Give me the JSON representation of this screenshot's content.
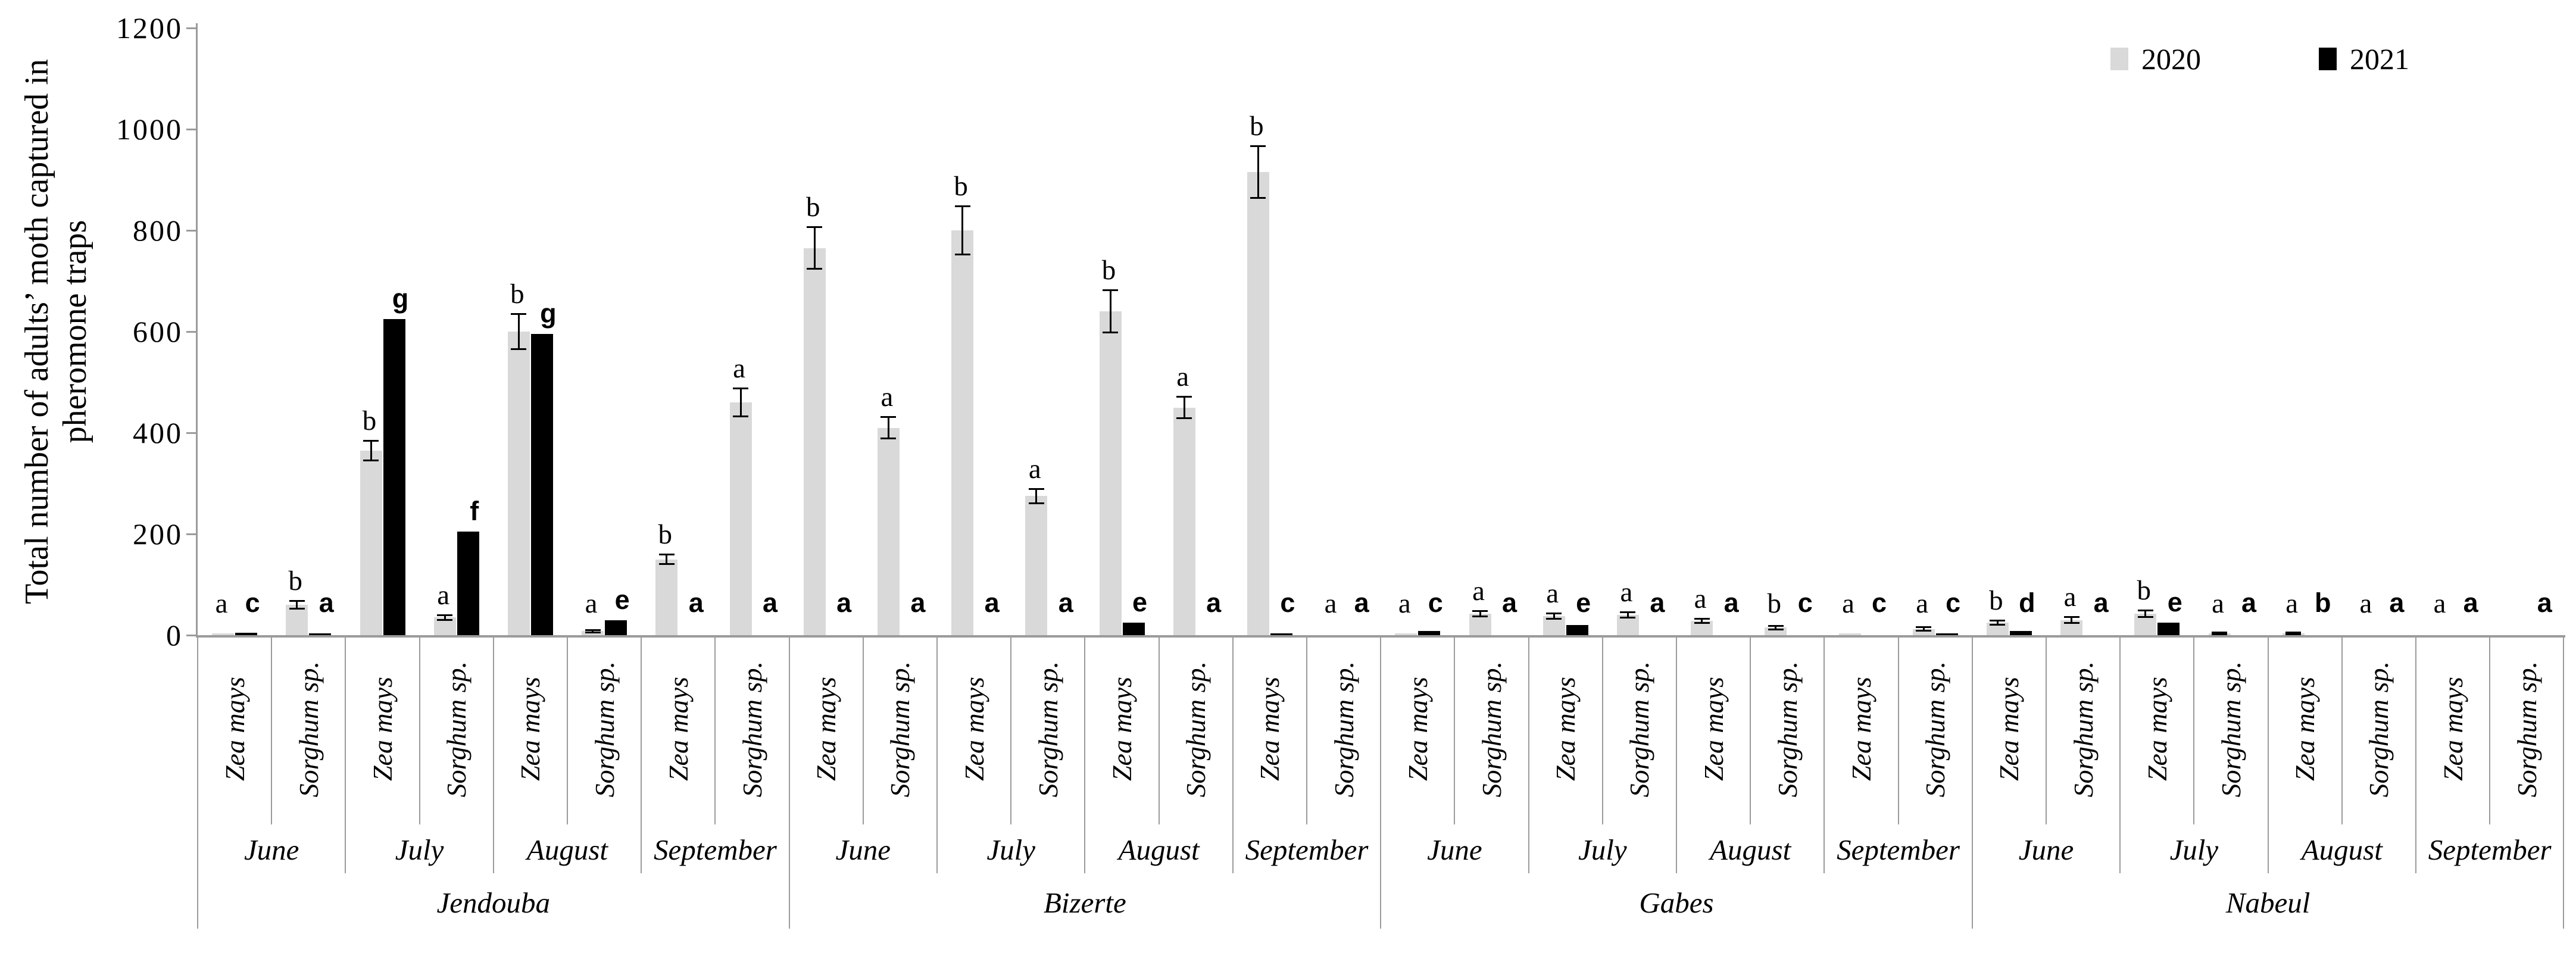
{
  "figure": {
    "background": "#ffffff"
  },
  "y_axis": {
    "title_line1": "Total number of adults’ moth captured in",
    "title_line2": "pheromone traps"
  },
  "legend": {
    "items": [
      {
        "label": "2020",
        "color": "#d9d9d9"
      },
      {
        "label": "2021",
        "color": "#000000"
      }
    ]
  },
  "colors": {
    "bar2020": "#d9d9d9",
    "bar2021": "#000000",
    "axis": "#9b9b9b",
    "error": "#000000"
  },
  "chart_data": {
    "type": "bar",
    "title": "",
    "xlabel": "",
    "ylabel": "Total number of adults’ moth captured in pheromone traps",
    "ylim": [
      0,
      1200
    ],
    "yticks": [
      0,
      200,
      400,
      600,
      800,
      1000,
      1200
    ],
    "grid": false,
    "legend_position": "top-right",
    "series_names": [
      "2020",
      "2021"
    ],
    "regions": [
      {
        "name": "Jendouba",
        "months": [
          {
            "name": "June",
            "groups": [
              {
                "crop": "Zea mays",
                "y2020": 2,
                "err2020": 0,
                "letter2020": "a",
                "y2021": 5,
                "err2021": 0,
                "letter2021": "c"
              },
              {
                "crop": "Sorghum sp.",
                "y2020": 60,
                "err2020": 8,
                "letter2020": "b",
                "y2021": 2,
                "err2021": 0,
                "letter2021": "a"
              }
            ]
          },
          {
            "name": "July",
            "groups": [
              {
                "crop": "Zea mays",
                "y2020": 365,
                "err2020": 20,
                "letter2020": "b",
                "y2021": 625,
                "err2021": 0,
                "letter2021": "g"
              },
              {
                "crop": "Sorghum sp.",
                "y2020": 35,
                "err2020": 5,
                "letter2020": "a",
                "y2021": 205,
                "err2021": 0,
                "letter2021": "f"
              }
            ]
          },
          {
            "name": "August",
            "groups": [
              {
                "crop": "Zea mays",
                "y2020": 600,
                "err2020": 35,
                "letter2020": "b",
                "y2021": 595,
                "err2021": 0,
                "letter2021": "g"
              },
              {
                "crop": "Sorghum sp.",
                "y2020": 8,
                "err2020": 3,
                "letter2020": "a",
                "y2021": 30,
                "err2021": 0,
                "letter2021": "e"
              }
            ]
          },
          {
            "name": "September",
            "groups": [
              {
                "crop": "Zea mays",
                "y2020": 150,
                "err2020": 10,
                "letter2020": "b",
                "y2021": 0,
                "err2021": 0,
                "letter2021": "a"
              },
              {
                "crop": "Sorghum sp.",
                "y2020": 460,
                "err2020": 28,
                "letter2020": "a",
                "y2021": 0,
                "err2021": 0,
                "letter2021": "a"
              }
            ]
          }
        ]
      },
      {
        "name": "Bizerte",
        "months": [
          {
            "name": "June",
            "groups": [
              {
                "crop": "Zea mays",
                "y2020": 765,
                "err2020": 42,
                "letter2020": "b",
                "y2021": 0,
                "err2021": 0,
                "letter2021": "a"
              },
              {
                "crop": "Sorghum sp.",
                "y2020": 410,
                "err2020": 22,
                "letter2020": "a",
                "y2021": 0,
                "err2021": 0,
                "letter2021": "a"
              }
            ]
          },
          {
            "name": "July",
            "groups": [
              {
                "crop": "Zea mays",
                "y2020": 800,
                "err2020": 48,
                "letter2020": "b",
                "y2021": 0,
                "err2021": 0,
                "letter2021": "a"
              },
              {
                "crop": "Sorghum sp.",
                "y2020": 275,
                "err2020": 15,
                "letter2020": "a",
                "y2021": 0,
                "err2021": 0,
                "letter2021": "a"
              }
            ]
          },
          {
            "name": "August",
            "groups": [
              {
                "crop": "Zea mays",
                "y2020": 640,
                "err2020": 42,
                "letter2020": "b",
                "y2021": 25,
                "err2021": 0,
                "letter2021": "e"
              },
              {
                "crop": "Sorghum sp.",
                "y2020": 450,
                "err2020": 22,
                "letter2020": "a",
                "y2021": 0,
                "err2021": 0,
                "letter2021": "a"
              }
            ]
          },
          {
            "name": "September",
            "groups": [
              {
                "crop": "Zea mays",
                "y2020": 915,
                "err2020": 52,
                "letter2020": "b",
                "y2021": 3,
                "err2021": 0,
                "letter2021": "c"
              },
              {
                "crop": "Sorghum sp.",
                "y2020": 0,
                "err2020": 0,
                "letter2020": "a",
                "y2021": 0,
                "err2021": 0,
                "letter2021": "a"
              }
            ]
          }
        ]
      },
      {
        "name": "Gabes",
        "months": [
          {
            "name": "June",
            "groups": [
              {
                "crop": "Zea mays",
                "y2020": 3,
                "err2020": 0,
                "letter2020": "a",
                "y2021": 8,
                "err2021": 0,
                "letter2021": "c"
              },
              {
                "crop": "Sorghum sp.",
                "y2020": 42,
                "err2020": 6,
                "letter2020": "a",
                "y2021": 0,
                "err2021": 0,
                "letter2021": "a"
              }
            ]
          },
          {
            "name": "July",
            "groups": [
              {
                "crop": "Zea mays",
                "y2020": 38,
                "err2020": 6,
                "letter2020": "a",
                "y2021": 20,
                "err2021": 0,
                "letter2021": "e"
              },
              {
                "crop": "Sorghum sp.",
                "y2020": 40,
                "err2020": 6,
                "letter2020": "a",
                "y2021": 0,
                "err2021": 0,
                "letter2021": "a"
              }
            ]
          },
          {
            "name": "August",
            "groups": [
              {
                "crop": "Zea mays",
                "y2020": 28,
                "err2020": 5,
                "letter2020": "a",
                "y2021": 0,
                "err2021": 0,
                "letter2021": "a"
              },
              {
                "crop": "Sorghum sp.",
                "y2020": 15,
                "err2020": 4,
                "letter2020": "b",
                "y2021": 0,
                "err2021": 0,
                "letter2021": "c"
              }
            ]
          },
          {
            "name": "September",
            "groups": [
              {
                "crop": "Zea mays",
                "y2020": 2,
                "err2020": 0,
                "letter2020": "a",
                "y2021": 0,
                "err2021": 0,
                "letter2021": "c"
              },
              {
                "crop": "Sorghum sp.",
                "y2020": 12,
                "err2020": 4,
                "letter2020": "a",
                "y2021": 2,
                "err2021": 0,
                "letter2021": "c"
              }
            ]
          }
        ]
      },
      {
        "name": "Nabeul",
        "months": [
          {
            "name": "June",
            "groups": [
              {
                "crop": "Zea mays",
                "y2020": 25,
                "err2020": 5,
                "letter2020": "b",
                "y2021": 8,
                "err2021": 0,
                "letter2021": "d"
              },
              {
                "crop": "Sorghum sp.",
                "y2020": 30,
                "err2020": 6,
                "letter2020": "a",
                "y2021": 0,
                "err2021": 0,
                "letter2021": "a"
              }
            ]
          },
          {
            "name": "July",
            "groups": [
              {
                "crop": "Zea mays",
                "y2020": 42,
                "err2020": 7,
                "letter2020": "b",
                "y2021": 25,
                "err2021": 0,
                "letter2021": "e"
              },
              {
                "crop": "Sorghum sp.",
                "y2020": 3,
                "err2020": 2,
                "letter2020": "a",
                "y2021": 0,
                "err2021": 0,
                "letter2021": "a"
              }
            ]
          },
          {
            "name": "August",
            "groups": [
              {
                "crop": "Zea mays",
                "y2020": 3,
                "err2020": 2,
                "letter2020": "a",
                "y2021": 0,
                "err2021": 0,
                "letter2021": "b"
              },
              {
                "crop": "Sorghum sp.",
                "y2020": 0,
                "err2020": 0,
                "letter2020": "a",
                "y2021": 0,
                "err2021": 0,
                "letter2021": "a"
              }
            ]
          },
          {
            "name": "September",
            "groups": [
              {
                "crop": "Zea mays",
                "y2020": 0,
                "err2020": 0,
                "letter2020": "a",
                "y2021": 0,
                "err2021": 0,
                "letter2021": "a"
              },
              {
                "crop": "Sorghum sp.",
                "y2020": 0,
                "err2020": 0,
                "letter2020": "",
                "y2021": 0,
                "err2021": 0,
                "letter2021": "a"
              }
            ]
          }
        ]
      }
    ]
  }
}
